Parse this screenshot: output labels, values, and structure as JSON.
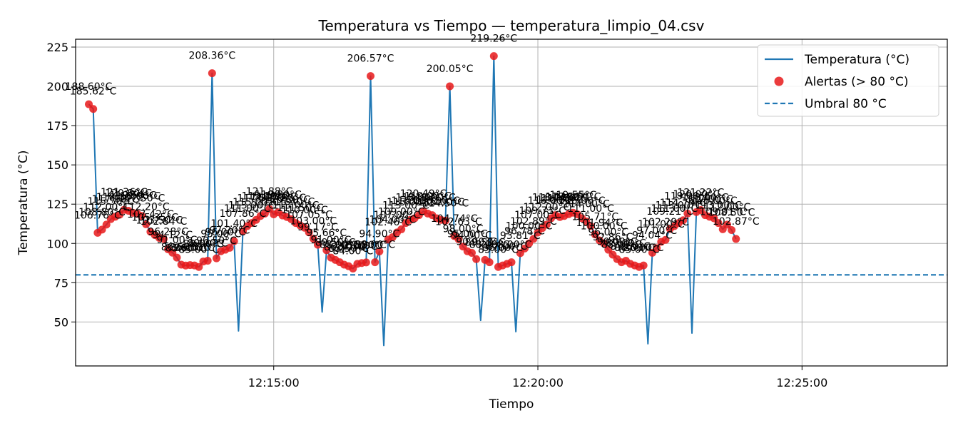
{
  "chart_data": {
    "type": "line",
    "title": "Temperatura vs Tiempo — temperatura_limpio_04.csv",
    "xlabel": "Tiempo",
    "ylabel": "Temperatura (°C)",
    "x_start": "12:11:30",
    "x_step_seconds": 5,
    "xlim": [
      "12:11:15",
      "12:27:45"
    ],
    "ylim": [
      22,
      230
    ],
    "x_ticks": [
      "12:15:00",
      "12:20:00",
      "12:25:00"
    ],
    "y_ticks": [
      50,
      75,
      100,
      125,
      150,
      175,
      200,
      225
    ],
    "grid": true,
    "threshold": 80,
    "legend": {
      "position": "top-right",
      "entries": [
        "Temperatura (°C)",
        "Alertas (> 80 °C)",
        "Umbral 80 °C"
      ]
    },
    "series": [
      {
        "name": "Temperatura (°C)",
        "values": [
          188.6,
          185.62,
          106.76,
          108.8,
          112.0,
          115.5,
          117.0,
          118.3,
          121.36,
          120.8,
          119.5,
          118.9,
          117.5,
          112.2,
          107.42,
          105.35,
          103.5,
          102.84,
          96.28,
          94.12,
          91.0,
          86.5,
          85.9,
          86.2,
          86.0,
          85.0,
          88.5,
          89.0,
          208.36,
          90.5,
          95.0,
          96.0,
          97.2,
          101.4,
          44.3,
          107.86,
          111.0,
          113.0,
          115.0,
          117.5,
          119.0,
          121.88,
          118.5,
          119.8,
          117.8,
          116.8,
          115.4,
          113.0,
          111.5,
          110.0,
          107.05,
          103.0,
          99.17,
          56.3,
          95.66,
          91.0,
          89.5,
          88.0,
          86.5,
          85.5,
          84.0,
          87.0,
          87.5,
          87.9,
          206.57,
          88.0,
          94.9,
          35.0,
          102.46,
          104.0,
          107.0,
          109.0,
          113.0,
          115.0,
          116.0,
          118.0,
          120.49,
          119.0,
          118.0,
          116.0,
          115.0,
          114.5,
          200.05,
          104.74,
          102.63,
          98.0,
          95.0,
          94.0,
          90.0,
          51.0,
          89.5,
          88.0,
          219.26,
          85.0,
          86.0,
          87.0,
          88.0,
          43.8,
          93.81,
          96.78,
          100.0,
          102.89,
          107.0,
          109.73,
          112.0,
          116.0,
          118.0,
          116.8,
          117.5,
          118.6,
          119.55,
          118.5,
          116.0,
          114.0,
          111.0,
          105.71,
          101.94,
          100.0,
          96.0,
          92.86,
          90.0,
          88.0,
          89.0,
          87.0,
          86.0,
          85.0,
          86.0,
          36.1,
          94.04,
          97.0,
          101.0,
          102.29,
          109.21,
          111.0,
          113.0,
          114.74,
          119.0,
          42.9,
          120.0,
          121.22,
          118.0,
          117.0,
          116.0,
          113.0,
          109.01,
          112.0,
          108.5,
          102.87
        ]
      },
      {
        "name": "Alertas (> 80 °C)",
        "values": [
          188.6,
          185.62,
          106.76,
          108.8,
          112.0,
          115.5,
          117.0,
          118.3,
          121.36,
          120.8,
          119.5,
          118.9,
          117.5,
          112.2,
          107.42,
          105.35,
          103.5,
          102.84,
          96.28,
          94.12,
          91.0,
          86.5,
          85.9,
          86.2,
          86.0,
          85.0,
          88.5,
          89.0,
          208.36,
          90.5,
          95.0,
          96.0,
          97.2,
          101.4,
          null,
          107.86,
          111.0,
          113.0,
          115.0,
          117.5,
          119.0,
          121.88,
          118.5,
          119.8,
          117.8,
          116.8,
          115.4,
          113.0,
          111.5,
          110.0,
          107.05,
          103.0,
          99.17,
          null,
          95.66,
          91.0,
          89.5,
          88.0,
          86.5,
          85.5,
          84.0,
          87.0,
          87.5,
          87.9,
          206.57,
          88.0,
          94.9,
          null,
          102.46,
          104.0,
          107.0,
          109.0,
          113.0,
          115.0,
          116.0,
          118.0,
          120.49,
          119.0,
          118.0,
          116.0,
          115.0,
          114.5,
          200.05,
          104.74,
          102.63,
          98.0,
          95.0,
          94.0,
          90.0,
          null,
          89.5,
          88.0,
          219.26,
          85.0,
          86.0,
          87.0,
          88.0,
          null,
          93.81,
          96.78,
          100.0,
          102.89,
          107.0,
          109.73,
          112.0,
          116.0,
          118.0,
          116.8,
          117.5,
          118.6,
          119.55,
          118.5,
          116.0,
          114.0,
          111.0,
          105.71,
          101.94,
          100.0,
          96.0,
          92.86,
          90.0,
          88.0,
          89.0,
          87.0,
          86.0,
          85.0,
          86.0,
          null,
          94.04,
          97.0,
          101.0,
          102.29,
          109.21,
          111.0,
          113.0,
          114.74,
          119.0,
          null,
          120.0,
          121.22,
          118.0,
          117.0,
          116.0,
          113.0,
          109.01,
          112.0,
          108.5,
          102.87
        ]
      }
    ],
    "colors": {
      "line": "#1f77b4",
      "alert": "#e8191a",
      "threshold": "#1f77b4",
      "grid": "#b0b0b0"
    }
  }
}
